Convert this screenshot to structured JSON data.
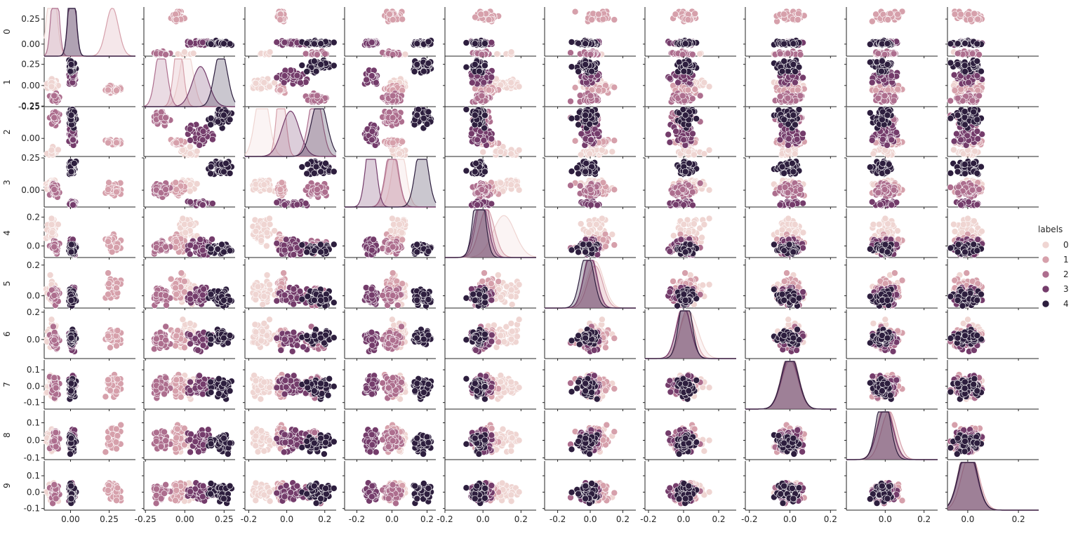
{
  "chart_data": {
    "type": "scatter",
    "subtype": "pairplot",
    "variables": [
      "0",
      "1",
      "2",
      "3",
      "4",
      "5",
      "6",
      "7",
      "8",
      "9"
    ],
    "diagonal": "kde",
    "hue": "labels",
    "legend": {
      "title": "labels",
      "placement": "right",
      "entries": [
        "0",
        "1",
        "2",
        "3",
        "4"
      ],
      "colors": [
        "#efd5d2",
        "#d6a0ab",
        "#ad6e8e",
        "#743c6b",
        "#2d1e3e"
      ]
    },
    "x_ticks": [
      [
        "0.00",
        "0.25"
      ],
      [
        "-0.25",
        "0.00",
        "0.25"
      ],
      [
        "-0.2",
        "0.0",
        "0.2"
      ],
      [
        "-0.2",
        "0.0",
        "0.2"
      ],
      [
        "-0.2",
        "0.0",
        "0.2"
      ],
      [
        "-0.2",
        "0.0",
        "0.2"
      ],
      [
        "-0.2",
        "0.0",
        "0.2"
      ],
      [
        "-0.2",
        "0.0",
        "0.2"
      ],
      [
        "0.0",
        "0.2"
      ],
      [
        "0.0",
        "0.2"
      ]
    ],
    "y_ticks": [
      [
        "0.00",
        "0.25"
      ],
      [
        "-0.25",
        "0.00",
        "0.25"
      ],
      [
        "0.00",
        "0.25"
      ],
      [
        "0.00",
        "0.25"
      ],
      [
        "0.0",
        "0.2"
      ],
      [
        "0.0",
        "0.2"
      ],
      [
        "0.0",
        "0.2"
      ],
      [
        "-0.1",
        "0.0",
        "0.1"
      ],
      [
        "-0.1",
        "0.0",
        "0.1"
      ],
      [
        "-0.1",
        "0.0",
        "0.1"
      ]
    ],
    "ranges": [
      [
        -0.17,
        0.42
      ],
      [
        -0.26,
        0.32
      ],
      [
        -0.22,
        0.26
      ],
      [
        -0.27,
        0.25
      ],
      [
        -0.2,
        0.28
      ],
      [
        -0.28,
        0.28
      ],
      [
        -0.22,
        0.3
      ],
      [
        -0.22,
        0.23
      ],
      [
        -0.2,
        0.27
      ],
      [
        -0.08,
        0.28
      ]
    ],
    "y_ranges": [
      [
        -0.12,
        0.37
      ],
      [
        -0.25,
        0.33
      ],
      [
        -0.14,
        0.24
      ],
      [
        -0.13,
        0.25
      ],
      [
        -0.08,
        0.26
      ],
      [
        -0.08,
        0.24
      ],
      [
        -0.14,
        0.22
      ],
      [
        -0.14,
        0.16
      ],
      [
        -0.11,
        0.17
      ],
      [
        -0.11,
        0.19
      ]
    ],
    "clusters": [
      {
        "label": "0",
        "center": [
          -0.12,
          0.01,
          -0.13,
          0.04,
          0.11,
          0.03,
          0.03,
          0.0,
          0.0,
          0.0
        ],
        "spread": [
          0.03,
          0.05,
          0.04,
          0.04,
          0.08,
          0.07,
          0.07,
          0.05,
          0.05,
          0.04
        ]
      },
      {
        "label": "1",
        "center": [
          0.27,
          -0.04,
          -0.03,
          0.0,
          0.02,
          0.03,
          0.02,
          0.0,
          0.02,
          0.01
        ],
        "spread": [
          0.05,
          0.03,
          0.02,
          0.04,
          0.05,
          0.06,
          0.05,
          0.05,
          0.05,
          0.04
        ]
      },
      {
        "label": "2",
        "center": [
          -0.1,
          -0.15,
          0.15,
          0.0,
          0.0,
          0.0,
          0.0,
          0.0,
          0.0,
          0.0
        ],
        "spread": [
          0.02,
          0.04,
          0.04,
          0.04,
          0.04,
          0.05,
          0.05,
          0.05,
          0.05,
          0.04
        ]
      },
      {
        "label": "3",
        "center": [
          0.01,
          0.1,
          0.02,
          -0.12,
          -0.01,
          0.0,
          0.0,
          0.0,
          0.0,
          0.0
        ],
        "spread": [
          0.02,
          0.07,
          0.06,
          0.03,
          0.04,
          0.05,
          0.05,
          0.05,
          0.05,
          0.04
        ]
      },
      {
        "label": "4",
        "center": [
          0.01,
          0.23,
          0.17,
          0.17,
          -0.02,
          -0.02,
          0.01,
          0.0,
          -0.01,
          0.0
        ],
        "spread": [
          0.02,
          0.05,
          0.05,
          0.04,
          0.03,
          0.05,
          0.04,
          0.05,
          0.04,
          0.04
        ]
      }
    ]
  }
}
